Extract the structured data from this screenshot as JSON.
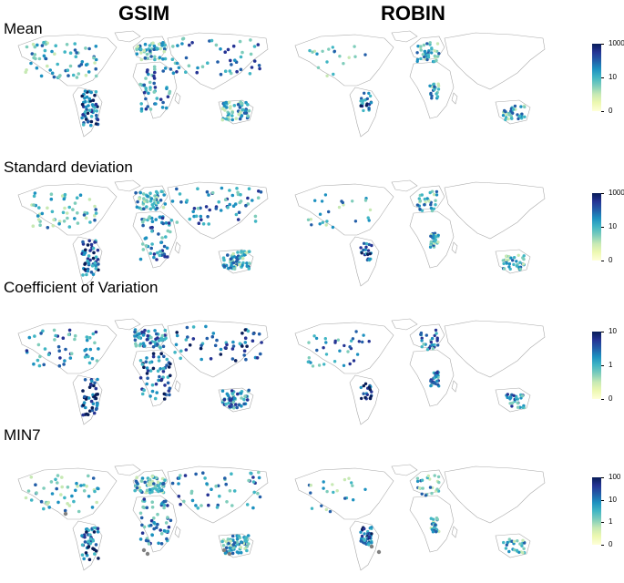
{
  "columns": [
    "GSIM",
    "ROBIN"
  ],
  "rows": [
    {
      "title": "Mean",
      "ticks": [
        "1000",
        "10",
        "0"
      ],
      "tick_values": [
        1000,
        10,
        0
      ]
    },
    {
      "title": "Standard deviation",
      "ticks": [
        "1000",
        "10",
        "0"
      ],
      "tick_values": [
        1000,
        10,
        0
      ]
    },
    {
      "title": "Coefficient of Variation",
      "ticks": [
        "10",
        "1",
        "0"
      ],
      "tick_values": [
        10,
        1,
        0
      ]
    },
    {
      "title": "MIN7",
      "ticks": [
        "100",
        "10",
        "1",
        "0"
      ],
      "tick_values": [
        100,
        10,
        1,
        0
      ]
    }
  ],
  "palette": [
    "#ffffd9",
    "#edf8b1",
    "#c7e9b4",
    "#7fcdbb",
    "#41b6c4",
    "#1d91c0",
    "#225ea8",
    "#253494",
    "#081d58"
  ],
  "missing_color": "#808080",
  "coastline_color": "#aaaaaa"
}
